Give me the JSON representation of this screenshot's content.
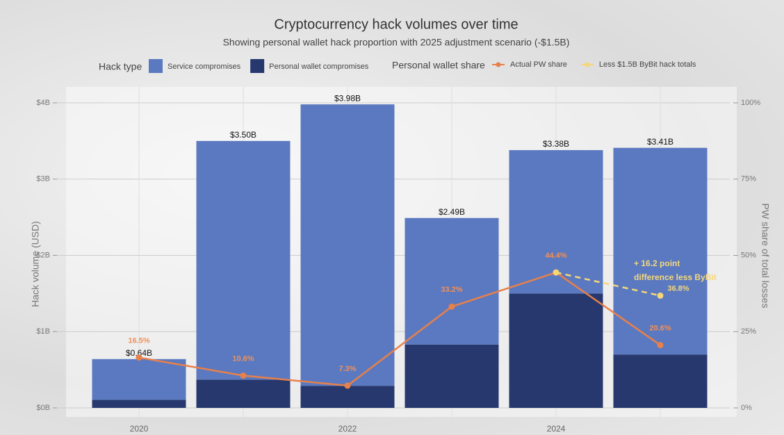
{
  "chart_data": {
    "type": "bar",
    "title": "Cryptocurrency hack volumes over time",
    "subtitle": "Showing personal wallet hack proportion with 2025 adjustment scenario (-$1.5B)",
    "y_label": "Hack volume (USD)",
    "y2_label": "PW share of total losses",
    "legend_titles": [
      "Hack type",
      "Personal wallet share"
    ],
    "categories": [
      "2020",
      null,
      "2022",
      null,
      "2024",
      null
    ],
    "series": [
      {
        "name": "Service compromises",
        "color": "#5b79c0",
        "values": [
          0.534,
          3.129,
          3.69,
          1.66,
          1.88,
          2.71
        ]
      },
      {
        "name": "Personal wallet compromises",
        "color": "#26386e",
        "values": [
          0.106,
          0.371,
          0.29,
          0.83,
          1.5,
          0.7
        ]
      }
    ],
    "totals": [
      0.64,
      3.5,
      3.98,
      2.49,
      3.38,
      3.41
    ],
    "total_labels": [
      "$0.64B",
      "$3.50B",
      "$3.98B",
      "$2.49B",
      "$3.38B",
      "$3.41B"
    ],
    "lines": [
      {
        "name": "Actual PW share",
        "color": "#e8804a",
        "axis": "y2",
        "values": [
          16.5,
          10.6,
          7.3,
          33.2,
          44.4,
          20.6
        ],
        "value_labels": [
          "16.5%",
          "10.6%",
          "7.3%",
          "33.2%",
          "44.4%",
          "20.6%"
        ]
      },
      {
        "name": "Less $1.5B ByBit hack totals",
        "color": "#f5d77a",
        "axis": "y2",
        "dashed": true,
        "values": [
          null,
          null,
          null,
          null,
          44.4,
          36.8
        ],
        "value_labels": [
          null,
          null,
          null,
          null,
          null,
          "36.8%"
        ]
      }
    ],
    "annotation": "+ 16.2 point difference less ByBit",
    "ylim": [
      0,
      4
    ],
    "yticks": [
      {
        "value": 0,
        "label": "$0B"
      },
      {
        "value": 1,
        "label": "$1B"
      },
      {
        "value": 2,
        "label": "$2B"
      },
      {
        "value": 3,
        "label": "$3B"
      },
      {
        "value": 4,
        "label": "$4B"
      }
    ],
    "y2lim": [
      0,
      100
    ],
    "y2ticks": [
      {
        "value": 0,
        "label": "0%"
      },
      {
        "value": 25,
        "label": "25%"
      },
      {
        "value": 50,
        "label": "50%"
      },
      {
        "value": 75,
        "label": "75%"
      },
      {
        "value": 100,
        "label": "100%"
      }
    ],
    "grid": true
  }
}
